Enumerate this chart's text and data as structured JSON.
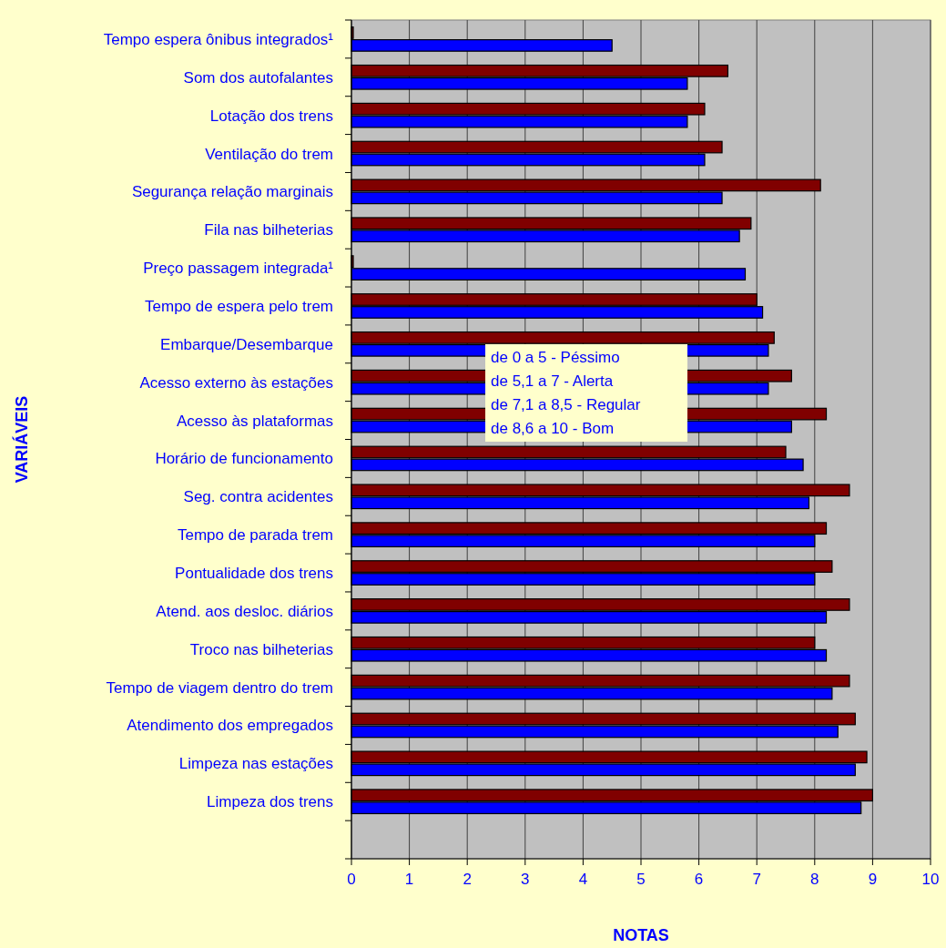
{
  "chart_data": {
    "type": "bar",
    "orientation": "horizontal",
    "xlabel": "NOTAS",
    "ylabel": "VARIÁVEIS",
    "categories": [
      "Tempo espera ônibus integrados¹",
      "Som dos autofalantes",
      "Lotação dos trens",
      "Ventilação do trem",
      "Segurança relação marginais",
      "Fila nas bilheterias",
      "Preço passagem integrada¹",
      "Tempo de espera pelo trem",
      "Embarque/Desembarque",
      "Acesso externo às estações",
      "Acesso às plataformas",
      "Horário de funcionamento",
      "Seg. contra acidentes",
      "Tempo de parada trem",
      "Pontualidade dos trens",
      "Atend. aos desloc. diários",
      "Troco nas bilheterias",
      "Tempo de viagem dentro do trem",
      "Atendimento dos empregados",
      "Limpeza nas estações",
      "Limpeza dos trens",
      null
    ],
    "series": [
      {
        "color": "#800000",
        "values": [
          0,
          6.5,
          6.1,
          6.4,
          8.1,
          6.9,
          0,
          7.0,
          7.3,
          7.6,
          8.2,
          7.5,
          8.6,
          8.2,
          8.3,
          8.6,
          8.0,
          8.6,
          8.7,
          8.9,
          9.0,
          null
        ]
      },
      {
        "color": "#0000ff",
        "values": [
          4.5,
          5.8,
          5.8,
          6.1,
          6.4,
          6.7,
          6.8,
          7.1,
          7.2,
          7.2,
          7.6,
          7.8,
          7.9,
          8.0,
          8.0,
          8.2,
          8.2,
          8.3,
          8.4,
          8.7,
          8.8,
          null
        ]
      }
    ],
    "xlim": [
      0,
      10
    ],
    "xticks": [
      0,
      1,
      2,
      3,
      4,
      5,
      6,
      7,
      8,
      9,
      10
    ],
    "grid": "x",
    "annotations": [
      "de 0 a 5 - Péssimo",
      "de 5,1 a 7 - Alerta",
      "de 7,1 a 8,5 - Regular",
      "de 8,6 a 10 - Bom"
    ]
  }
}
